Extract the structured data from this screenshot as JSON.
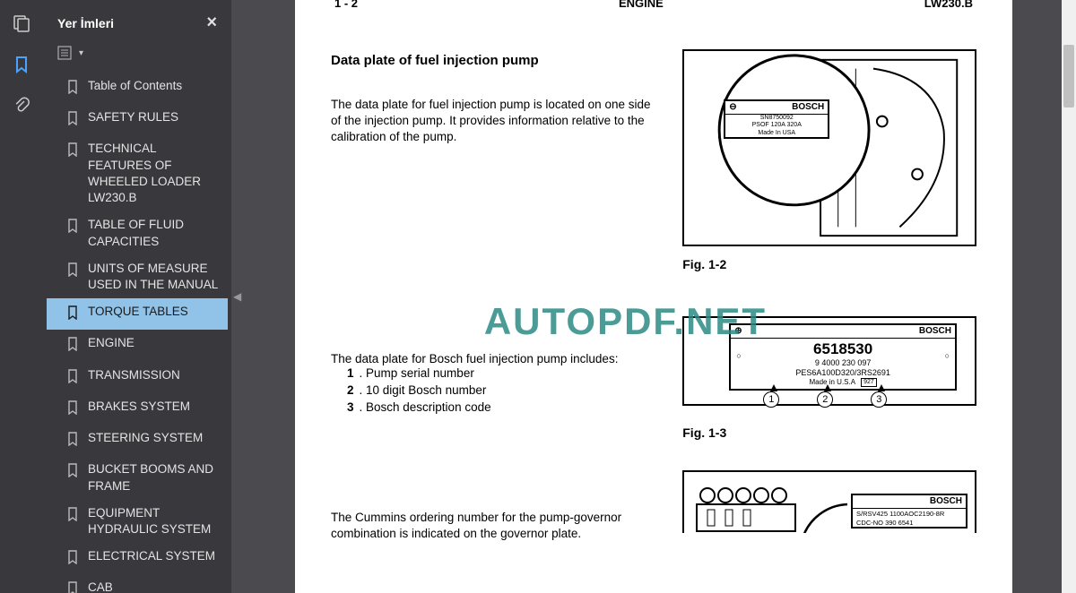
{
  "sidebar": {
    "title": "Yer İmleri",
    "items": [
      {
        "label": "Table of Contents"
      },
      {
        "label": "SAFETY RULES"
      },
      {
        "label": "TECHNICAL FEATURES OF WHEELED LOADER LW230.B"
      },
      {
        "label": "TABLE OF FLUID CAPACITIES"
      },
      {
        "label": "UNITS OF MEASURE USED IN THE MANUAL"
      },
      {
        "label": "TORQUE TABLES"
      },
      {
        "label": "ENGINE"
      },
      {
        "label": "TRANSMISSION"
      },
      {
        "label": "BRAKES SYSTEM"
      },
      {
        "label": "STEERING SYSTEM"
      },
      {
        "label": "BUCKET BOOMS AND FRAME"
      },
      {
        "label": "EQUIPMENT HYDRAULIC SYSTEM"
      },
      {
        "label": "ELECTRICAL SYSTEM"
      },
      {
        "label": "CAB"
      }
    ],
    "selected_index": 5
  },
  "page_header": {
    "left": "1 - 2",
    "center": "ENGINE",
    "right": "LW230.B"
  },
  "doc": {
    "section_title": "Data plate of fuel injection pump",
    "para1": "The data plate for fuel injection pump is located on one side of the injection pump. It provides information relative to the calibration of the pump.",
    "fig1_label": "Fig. 1-2",
    "plate1": {
      "brand": "BOSCH",
      "line1": "SN8750092",
      "line2": "PSOF 120A 320A",
      "line3": "Made In USA"
    },
    "list_intro": "The data plate for Bosch fuel injection pump includes:",
    "list": [
      {
        "n": "1",
        "t": "Pump serial number"
      },
      {
        "n": "2",
        "t": "10 digit Bosch number"
      },
      {
        "n": "3",
        "t": "Bosch description code"
      }
    ],
    "fig2_label": "Fig. 1-3",
    "plate2": {
      "brand": "BOSCH",
      "big": "6518530",
      "l2": "9 4000 230 097",
      "l3": "PES6A100D320/3RS2691",
      "l4": "Made in U.S.A",
      "tag": "927"
    },
    "para2": "The Cummins ordering number for the pump-governor combination is indicated on the governor plate.",
    "plate3": {
      "brand": "BOSCH",
      "l1": "S/RSV425 1100AOC2190-8R",
      "l2": "CDC-NO 390 6541"
    }
  },
  "watermark": "AUTOPDF.NET"
}
